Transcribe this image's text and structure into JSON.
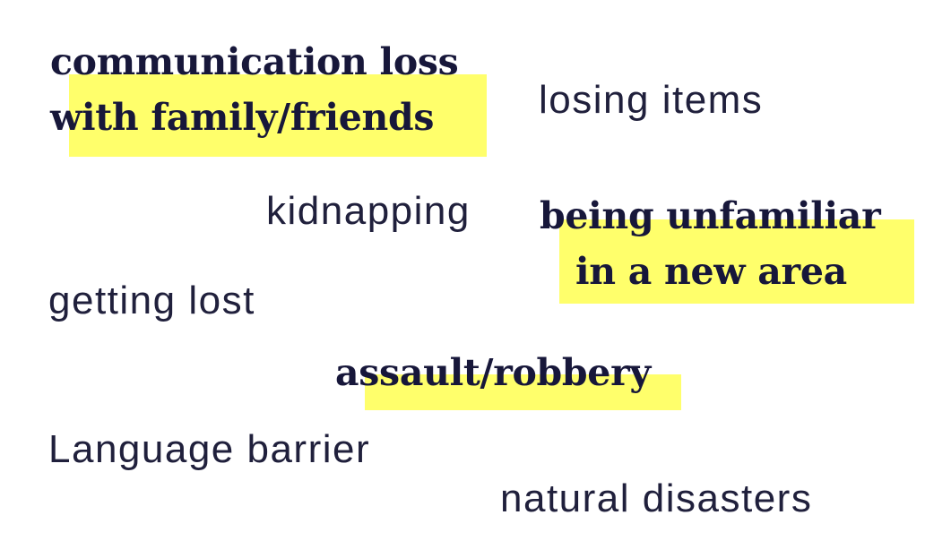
{
  "highlight_color": "#ffff6b",
  "text_color": "#1b1a3a",
  "terms": {
    "communication_loss": {
      "line1": "communication loss",
      "line2": "with family/friends"
    },
    "losing_items": "losing items",
    "kidnapping": "kidnapping",
    "being_unfamiliar": {
      "line1": "being unfamiliar",
      "line2": "in a new area"
    },
    "getting_lost": "getting lost",
    "assault_robbery": "assault/robbery",
    "language_barrier": "Language barrier",
    "natural_disasters": "natural disasters"
  }
}
